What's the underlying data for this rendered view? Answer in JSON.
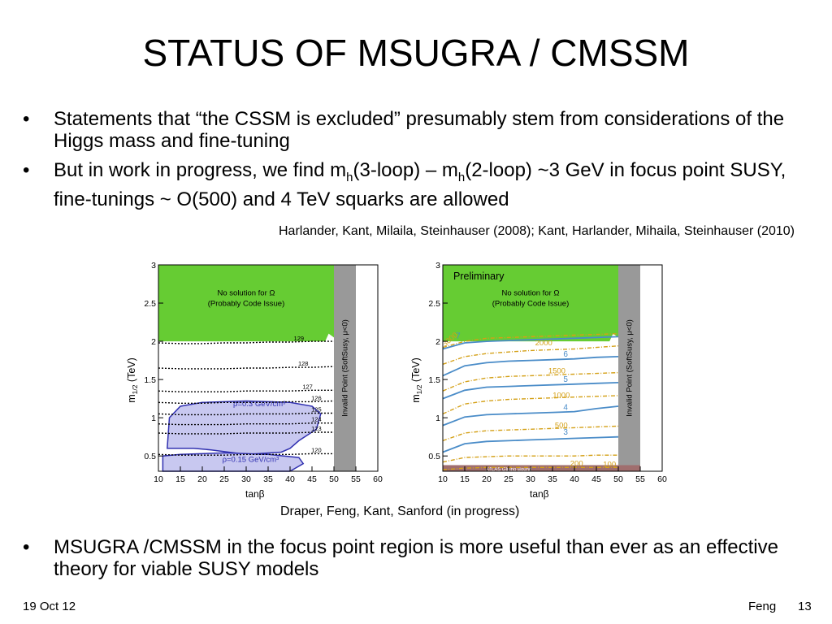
{
  "slide": {
    "title": "STATUS OF MSUGRA / CMSSM",
    "bullet_symbol": "•",
    "bullets_top": [
      {
        "text": "Statements that “the CSSM is excluded” presumably stem from considerations of the Higgs mass and fine-tuning"
      },
      {
        "pre": "But in work in progress, we find m",
        "sub1": "h",
        "mid": "(3-loop) – m",
        "sub2": "h",
        "post": "(2-loop) ~3 GeV in focus point SUSY, fine-tunings ~ O(500) and 4 TeV squarks are allowed"
      }
    ],
    "citation_1": "Harlander, Kant, Milaila, Steinhauser (2008); Kant, Harlander, Mihaila, Steinhauser (2010)",
    "citation_2": "Draper, Feng, Kant, Sanford (in progress)",
    "bullet_bottom": "MSUGRA /CMSSM in the focus point region is more useful than ever as an effective theory for viable SUSY models",
    "footer_left": "19 Oct 12",
    "footer_author": "Feng",
    "footer_page": "13"
  },
  "colors": {
    "green_region": "#66cc33",
    "invalid_region": "#999999",
    "dm_region": "#c8c8f0",
    "blue_contour": "#4a8cc8",
    "orange_contour": "#d4a017",
    "atlas_band": "#a06e6e"
  },
  "chart_data": [
    {
      "type": "contour",
      "xlabel": "tanβ",
      "ylabel_main": "m",
      "ylabel_sub": "1/2",
      "ylabel_unit": "(TeV)",
      "xlim": [
        10,
        60
      ],
      "ylim": [
        0.3,
        3
      ],
      "x_ticks": [
        10,
        15,
        20,
        25,
        30,
        35,
        40,
        45,
        50,
        55,
        60
      ],
      "y_ticks": [
        0.5,
        1,
        1.5,
        2,
        2.5,
        3
      ],
      "no_solution_text": [
        "No solution for Ω",
        "(Probably Code Issue)"
      ],
      "no_solution_region": {
        "x": [
          10,
          50
        ],
        "y_from": 2.0,
        "y_to": 3
      },
      "invalid_region": {
        "x": [
          50,
          55
        ],
        "label": "Invalid Point (SoftSusy, μ<0)"
      },
      "higgs_contours": [
        {
          "label": "129",
          "y": [
            1.98,
            1.97,
            1.97,
            1.98,
            1.98,
            1.99,
            1.99,
            2.0,
            2.0
          ],
          "label_x": 42
        },
        {
          "label": "128",
          "y": [
            1.65,
            1.64,
            1.64,
            1.64,
            1.65,
            1.65,
            1.66,
            1.66,
            1.67
          ],
          "label_x": 43
        },
        {
          "label": "127",
          "y": [
            1.35,
            1.34,
            1.34,
            1.34,
            1.35,
            1.35,
            1.35,
            1.36,
            1.36
          ],
          "label_x": 44
        },
        {
          "label": "126",
          "y": [
            1.2,
            1.19,
            1.19,
            1.2,
            1.2,
            1.2,
            1.21,
            1.21,
            1.22
          ],
          "label_x": 46
        },
        {
          "label": "125",
          "y": [
            1.05,
            1.04,
            1.04,
            1.04,
            1.05,
            1.05,
            1.05,
            1.06,
            1.06
          ],
          "label_x": 46
        },
        {
          "label": "124",
          "y": [
            0.92,
            0.91,
            0.91,
            0.91,
            0.92,
            0.92,
            0.92,
            0.93,
            0.93
          ],
          "label_x": 46
        },
        {
          "label": "123",
          "y": [
            0.8,
            0.79,
            0.79,
            0.79,
            0.8,
            0.8,
            0.8,
            0.81,
            0.81
          ],
          "label_x": 46
        },
        {
          "label": "120",
          "y": [
            0.52,
            0.51,
            0.51,
            0.51,
            0.52,
            0.52,
            0.52,
            0.53,
            0.53
          ],
          "label_x": 46
        }
      ],
      "contour_x": [
        10,
        15,
        20,
        25,
        30,
        35,
        40,
        45,
        50
      ],
      "dm_regions": [
        {
          "label": "ρ=0.3 GeV/cm³",
          "label_x": 33,
          "label_y": 1.15,
          "outline": [
            [
              12,
              0.6
            ],
            [
              12.5,
              1.0
            ],
            [
              15,
              1.15
            ],
            [
              20,
              1.2
            ],
            [
              30,
              1.22
            ],
            [
              40,
              1.2
            ],
            [
              45,
              1.15
            ],
            [
              47,
              1.05
            ],
            [
              46,
              0.85
            ],
            [
              42,
              0.7
            ],
            [
              40,
              0.6
            ],
            [
              38,
              0.55
            ],
            [
              30,
              0.52
            ],
            [
              22,
              0.58
            ],
            [
              18,
              0.6
            ],
            [
              14,
              0.6
            ]
          ]
        },
        {
          "label": "ρ=0.15 GeV/cm³",
          "label_x": 31,
          "label_y": 0.42,
          "outline": [
            [
              11,
              0.3
            ],
            [
              11,
              0.5
            ],
            [
              15,
              0.52
            ],
            [
              25,
              0.54
            ],
            [
              35,
              0.52
            ],
            [
              42,
              0.48
            ],
            [
              43,
              0.4
            ],
            [
              40,
              0.3
            ]
          ]
        }
      ]
    },
    {
      "type": "contour",
      "xlabel": "tanβ",
      "ylabel_main": "m",
      "ylabel_sub": "1/2",
      "ylabel_unit": "(TeV)",
      "xlim": [
        10,
        60
      ],
      "ylim": [
        0.3,
        3
      ],
      "x_ticks": [
        10,
        15,
        20,
        25,
        30,
        35,
        40,
        45,
        50,
        55,
        60
      ],
      "y_ticks": [
        0.5,
        1,
        1.5,
        2,
        2.5,
        3
      ],
      "preliminary": "Preliminary",
      "no_solution_text": [
        "No solution for Ω",
        "(Probably Code Issue)"
      ],
      "no_solution_region": {
        "x": [
          10,
          50
        ],
        "y_from": 2.0,
        "y_to": 3
      },
      "invalid_region": {
        "x": [
          50,
          55
        ],
        "label": "Invalid Point (SoftSusy, μ<0)"
      },
      "atlas_band": {
        "label": "ATLAS Gluino Bound",
        "y_from": 0.3,
        "y_to": 0.38
      },
      "contour_x": [
        10,
        15,
        20,
        25,
        30,
        35,
        40,
        45,
        50
      ],
      "squark_contours_TeV": [
        {
          "label": "7",
          "y": [
            1.9,
            1.98,
            2.0,
            2.01,
            2.02,
            2.03,
            2.04,
            2.05,
            2.06
          ],
          "label_x": 13.5,
          "label_y": 2.04
        },
        {
          "label": "6",
          "y": [
            1.55,
            1.68,
            1.72,
            1.74,
            1.75,
            1.76,
            1.77,
            1.79,
            1.8
          ],
          "label_x": 38,
          "label_y": 1.8
        },
        {
          "label": "5",
          "y": [
            1.25,
            1.36,
            1.4,
            1.41,
            1.42,
            1.43,
            1.44,
            1.45,
            1.46
          ],
          "label_x": 38,
          "label_y": 1.47
        },
        {
          "label": "4",
          "y": [
            0.9,
            1.01,
            1.04,
            1.05,
            1.06,
            1.07,
            1.08,
            1.12,
            1.15
          ],
          "label_x": 38,
          "label_y": 1.1
        },
        {
          "label": "3",
          "y": [
            0.55,
            0.66,
            0.69,
            0.7,
            0.71,
            0.72,
            0.73,
            0.74,
            0.75
          ],
          "label_x": 38,
          "label_y": 0.78
        }
      ],
      "finetuning_contours": [
        {
          "label": "3000",
          "y": [
            1.92,
            2.0,
            2.04,
            2.05,
            2.06,
            2.07,
            2.08,
            2.09,
            2.1
          ],
          "label_x": 12,
          "label_y": 2.0,
          "rotate": -40
        },
        {
          "label": "2000",
          "y": [
            1.7,
            1.8,
            1.84,
            1.86,
            1.88,
            1.89,
            1.9,
            1.92,
            1.94
          ],
          "label_x": 33,
          "label_y": 1.95
        },
        {
          "label": "1500",
          "y": [
            1.35,
            1.47,
            1.52,
            1.54,
            1.55,
            1.56,
            1.57,
            1.58,
            1.59
          ],
          "label_x": 36,
          "label_y": 1.58
        },
        {
          "label": "1000",
          "y": [
            1.05,
            1.18,
            1.22,
            1.24,
            1.25,
            1.26,
            1.27,
            1.28,
            1.29
          ],
          "label_x": 37,
          "label_y": 1.26
        },
        {
          "label": "500",
          "y": [
            0.7,
            0.8,
            0.83,
            0.84,
            0.85,
            0.86,
            0.87,
            0.88,
            0.89
          ],
          "label_x": 37,
          "label_y": 0.87
        },
        {
          "label": "200",
          "y": [
            0.42,
            0.48,
            0.49,
            0.5,
            0.5,
            0.5,
            0.5,
            0.51,
            0.51
          ],
          "label_x": 40.5,
          "label_y": 0.37
        },
        {
          "label": "100",
          "y": [
            0.32,
            0.34,
            0.35,
            0.35,
            0.35,
            0.35,
            0.35,
            0.35,
            0.35
          ],
          "label_x": 48,
          "label_y": 0.36
        }
      ]
    }
  ]
}
